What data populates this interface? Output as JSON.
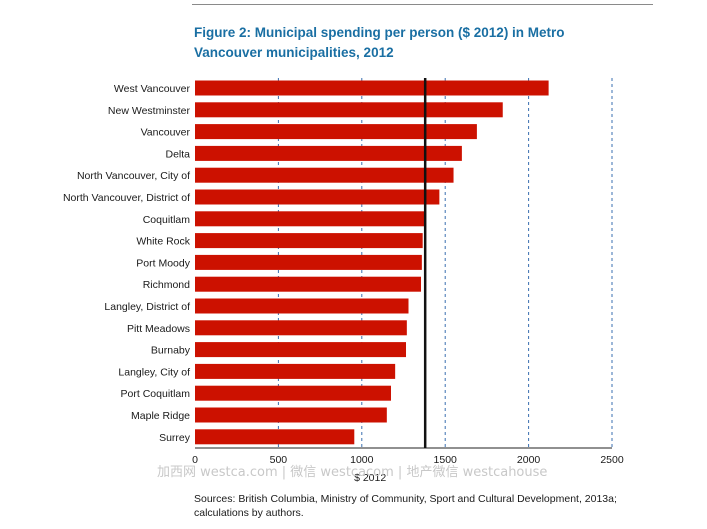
{
  "figure": {
    "title": "Figure 2: Municipal spending per person ($ 2012) in Metro Vancouver municipalities, 2012",
    "watermark": "加西网 westca.com | 微信 westcacom | 地产微信 westcahouse",
    "sources": "Sources: British Columbia, Ministry of Community, Sport and Cultural Development, 2013a; calculations by authors."
  },
  "colors": {
    "bar": "#cc1100",
    "title": "#1a6fa3",
    "gridline": "#3a6fb0",
    "reference_line": "#111111"
  },
  "chart_data": {
    "type": "bar",
    "orientation": "horizontal",
    "title": "Figure 2: Municipal spending per person ($ 2012) in Metro Vancouver municipalities, 2012",
    "xlabel": "$ 2012",
    "ylabel": "",
    "xlim": [
      0,
      2500
    ],
    "xticks": [
      0,
      500,
      1000,
      1500,
      2000,
      2500
    ],
    "grid": "vertical dashed",
    "reference_line": 1380,
    "categories": [
      "West Vancouver",
      "New Westminster",
      "Vancouver",
      "Delta",
      "North Vancouver, City of",
      "North Vancouver, District of",
      "Coquitlam",
      "White Rock",
      "Port Moody",
      "Richmond",
      "Langley, District of",
      "Pitt Meadows",
      "Burnaby",
      "Langley, City of",
      "Port Coquitlam",
      "Maple Ridge",
      "Surrey"
    ],
    "values": [
      2120,
      1845,
      1690,
      1600,
      1550,
      1465,
      1385,
      1365,
      1360,
      1355,
      1280,
      1270,
      1265,
      1200,
      1175,
      1150,
      955
    ]
  }
}
